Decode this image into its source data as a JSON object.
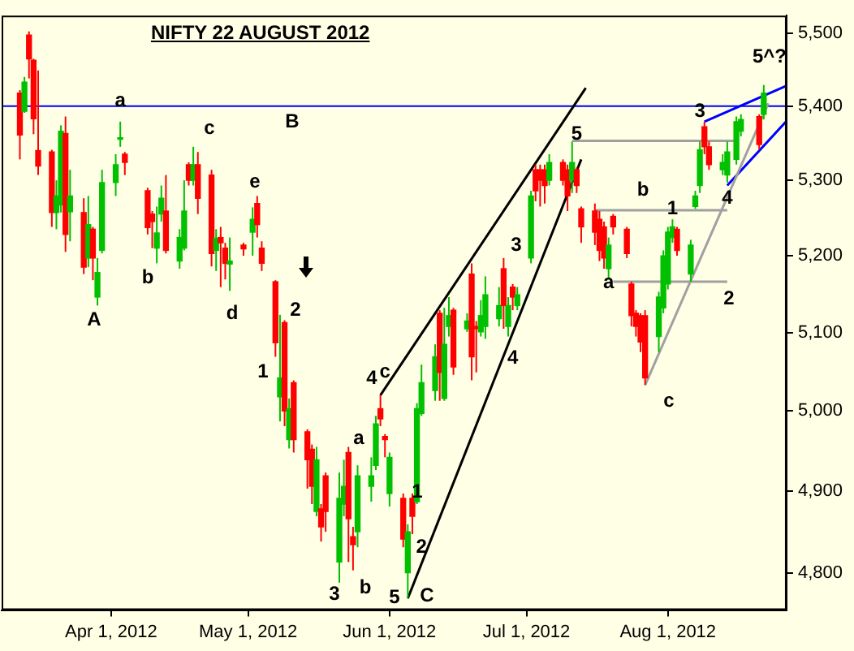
{
  "chart_data": {
    "type": "candlestick",
    "title": "NIFTY 22 AUGUST 2012",
    "log": true,
    "xlim": [
      "2012-03-08",
      "2012-08-27"
    ],
    "xticks": [
      {
        "value": "2012-04-01",
        "label": "Apr 1, 2012"
      },
      {
        "value": "2012-05-01",
        "label": "May 1, 2012"
      },
      {
        "value": "2012-06-01",
        "label": "Jun 1, 2012"
      },
      {
        "value": "2012-07-01",
        "label": "Jul 1, 2012"
      },
      {
        "value": "2012-08-01",
        "label": "Aug 1, 2012"
      }
    ],
    "ylim": [
      4755,
      5525
    ],
    "yticks": [
      {
        "value": 4800,
        "label": "4,800"
      },
      {
        "value": 4900,
        "label": "4,900"
      },
      {
        "value": 5000,
        "label": "5,000"
      },
      {
        "value": 5100,
        "label": "5,100"
      },
      {
        "value": 5200,
        "label": "5,200"
      },
      {
        "value": 5300,
        "label": "5,300"
      },
      {
        "value": 5400,
        "label": "5,400"
      },
      {
        "value": 5500,
        "label": "5,500"
      }
    ],
    "x": [
      "2012-03-12",
      "2012-03-13",
      "2012-03-14",
      "2012-03-15",
      "2012-03-16",
      "2012-03-19",
      "2012-03-20",
      "2012-03-21",
      "2012-03-22",
      "2012-03-23",
      "2012-03-26",
      "2012-03-27",
      "2012-03-28",
      "2012-03-29",
      "2012-03-30",
      "2012-04-02",
      "2012-04-03",
      "2012-04-04",
      "2012-04-09",
      "2012-04-10",
      "2012-04-11",
      "2012-04-12",
      "2012-04-13",
      "2012-04-16",
      "2012-04-17",
      "2012-04-18",
      "2012-04-19",
      "2012-04-20",
      "2012-04-23",
      "2012-04-24",
      "2012-04-25",
      "2012-04-26",
      "2012-04-27",
      "2012-04-30",
      "2012-05-02",
      "2012-05-03",
      "2012-05-04",
      "2012-05-07",
      "2012-05-08",
      "2012-05-09",
      "2012-05-10",
      "2012-05-11",
      "2012-05-14",
      "2012-05-15",
      "2012-05-16",
      "2012-05-17",
      "2012-05-18",
      "2012-05-21",
      "2012-05-22",
      "2012-05-23",
      "2012-05-24",
      "2012-05-25",
      "2012-05-28",
      "2012-05-29",
      "2012-05-30",
      "2012-05-31",
      "2012-06-01",
      "2012-06-04",
      "2012-06-05",
      "2012-06-06",
      "2012-06-07",
      "2012-06-08",
      "2012-06-11",
      "2012-06-12",
      "2012-06-13",
      "2012-06-14",
      "2012-06-15",
      "2012-06-18",
      "2012-06-19",
      "2012-06-20",
      "2012-06-21",
      "2012-06-22",
      "2012-06-25",
      "2012-06-26",
      "2012-06-27",
      "2012-06-28",
      "2012-06-29",
      "2012-07-02",
      "2012-07-03",
      "2012-07-04",
      "2012-07-05",
      "2012-07-06",
      "2012-07-09",
      "2012-07-10",
      "2012-07-11",
      "2012-07-12",
      "2012-07-13",
      "2012-07-16",
      "2012-07-17",
      "2012-07-18",
      "2012-07-19",
      "2012-07-20",
      "2012-07-23",
      "2012-07-24",
      "2012-07-25",
      "2012-07-26",
      "2012-07-27",
      "2012-07-30",
      "2012-07-31",
      "2012-08-01",
      "2012-08-02",
      "2012-08-03",
      "2012-08-06",
      "2012-08-07",
      "2012-08-08",
      "2012-08-09",
      "2012-08-10",
      "2012-08-13",
      "2012-08-14",
      "2012-08-16",
      "2012-08-17",
      "2012-08-21",
      "2012-08-22"
    ],
    "ohlc": [
      [
        5418,
        5422,
        5328,
        5361
      ],
      [
        5393,
        5440,
        5391,
        5433
      ],
      [
        5498,
        5503,
        5438,
        5465
      ],
      [
        5463,
        5465,
        5362,
        5383
      ],
      [
        5340,
        5449,
        5307,
        5319
      ],
      [
        5338,
        5341,
        5238,
        5257
      ],
      [
        5257,
        5300,
        5235,
        5279
      ],
      [
        5267,
        5374,
        5257,
        5366
      ],
      [
        5363,
        5386,
        5205,
        5228
      ],
      [
        5258,
        5314,
        5219,
        5279
      ],
      [
        5257,
        5276,
        5176,
        5185
      ],
      [
        5197,
        5279,
        5185,
        5241
      ],
      [
        5235,
        5238,
        5168,
        5197
      ],
      [
        5146,
        5197,
        5135,
        5178
      ],
      [
        5207,
        5314,
        5203,
        5297
      ],
      [
        5297,
        5335,
        5279,
        5321
      ],
      [
        5355,
        5379,
        5345,
        5357
      ],
      [
        5335,
        5338,
        5307,
        5324
      ],
      [
        5286,
        5290,
        5228,
        5237
      ],
      [
        5255,
        5259,
        5210,
        5245
      ],
      [
        5210,
        5265,
        5190,
        5230
      ],
      [
        5255,
        5293,
        5245,
        5276
      ],
      [
        5259,
        5307,
        5203,
        5207
      ],
      [
        5193,
        5235,
        5183,
        5224
      ],
      [
        5210,
        5300,
        5207,
        5259
      ],
      [
        5321,
        5324,
        5293,
        5300
      ],
      [
        5300,
        5345,
        5293,
        5321
      ],
      [
        5321,
        5338,
        5255,
        5276
      ],
      [
        5307,
        5314,
        5186,
        5203
      ],
      [
        5207,
        5235,
        5180,
        5223
      ],
      [
        5224,
        5238,
        5159,
        5217
      ],
      [
        5210,
        5217,
        5169,
        5190
      ],
      [
        5189,
        5224,
        5154,
        5193
      ],
      [
        5214,
        5217,
        5200,
        5209
      ],
      [
        5231,
        5264,
        5200,
        5248
      ],
      [
        5269,
        5279,
        5224,
        5241
      ],
      [
        5210,
        5219,
        5180,
        5190
      ],
      [
        5166,
        5168,
        5069,
        5087
      ],
      [
        5018,
        5123,
        4987,
        5042
      ],
      [
        5113,
        5116,
        4981,
        5000
      ],
      [
        4964,
        5016,
        4953,
        5003
      ],
      [
        5036,
        5039,
        4948,
        4964
      ],
      [
        4974,
        4977,
        4903,
        4939
      ],
      [
        4952,
        4958,
        4884,
        4906
      ],
      [
        4875,
        4955,
        4869,
        4939
      ],
      [
        4878,
        4884,
        4838,
        4856
      ],
      [
        4919,
        4923,
        4850,
        4875
      ],
      [
        4813,
        4923,
        4788,
        4891
      ],
      [
        4884,
        4939,
        4869,
        4906
      ],
      [
        4948,
        4955,
        4813,
        4866
      ],
      [
        4844,
        4856,
        4803,
        4834
      ],
      [
        4850,
        4932,
        4831,
        4919
      ],
      [
        4906,
        4942,
        4887,
        4919
      ],
      [
        4932,
        4994,
        4926,
        4984
      ],
      [
        5003,
        5020,
        4981,
        4990
      ],
      [
        4968,
        4971,
        4942,
        4964
      ],
      [
        4897,
        4948,
        4881,
        4942
      ],
      [
        4891,
        4897,
        4831,
        4841
      ],
      [
        4800,
        4859,
        4769,
        4850
      ],
      [
        4891,
        4897,
        4847,
        4869
      ],
      [
        4887,
        5010,
        4884,
        5003
      ],
      [
        4997,
        5059,
        4994,
        5036
      ],
      [
        5026,
        5085,
        5013,
        5069
      ],
      [
        5125,
        5129,
        5013,
        5049
      ],
      [
        5016,
        5132,
        5013,
        5085
      ],
      [
        5108,
        5146,
        5095,
        5122
      ],
      [
        5129,
        5132,
        5046,
        5056
      ],
      [
        5105,
        5125,
        5101,
        5115
      ],
      [
        5176,
        5190,
        5039,
        5069
      ],
      [
        5108,
        5115,
        5049,
        5105
      ],
      [
        5101,
        5142,
        5095,
        5122
      ],
      [
        5108,
        5173,
        5092,
        5149
      ],
      [
        5118,
        5159,
        5108,
        5135
      ],
      [
        5183,
        5197,
        5105,
        5135
      ],
      [
        5108,
        5146,
        5095,
        5135
      ],
      [
        5159,
        5163,
        5129,
        5146
      ],
      [
        5135,
        5159,
        5129,
        5149
      ],
      [
        5197,
        5286,
        5190,
        5279
      ],
      [
        5314,
        5321,
        5272,
        5286
      ],
      [
        5314,
        5321,
        5265,
        5300
      ],
      [
        5314,
        5321,
        5269,
        5293
      ],
      [
        5300,
        5335,
        5293,
        5324
      ],
      [
        5324,
        5328,
        5293,
        5300
      ],
      [
        5314,
        5321,
        5259,
        5279
      ],
      [
        5300,
        5352,
        5283,
        5324
      ],
      [
        5314,
        5317,
        5283,
        5293
      ],
      [
        5262,
        5265,
        5217,
        5238
      ],
      [
        5259,
        5269,
        5214,
        5231
      ],
      [
        5248,
        5259,
        5193,
        5207
      ],
      [
        5238,
        5245,
        5183,
        5197
      ],
      [
        5183,
        5224,
        5169,
        5214
      ],
      [
        5252,
        5255,
        5228,
        5238
      ],
      [
        5235,
        5238,
        5197,
        5203
      ],
      [
        5163,
        5166,
        5108,
        5122
      ],
      [
        5125,
        5129,
        5095,
        5108
      ],
      [
        5122,
        5125,
        5075,
        5088
      ],
      [
        5122,
        5129,
        5033,
        5042
      ],
      [
        5095,
        5153,
        5075,
        5146
      ],
      [
        5132,
        5207,
        5125,
        5200
      ],
      [
        5163,
        5238,
        5156,
        5231
      ],
      [
        5224,
        5248,
        5217,
        5238
      ],
      [
        5235,
        5238,
        5200,
        5207
      ],
      [
        5176,
        5221,
        5166,
        5214
      ],
      [
        5265,
        5286,
        5262,
        5279
      ],
      [
        5293,
        5352,
        5283,
        5341
      ],
      [
        5372,
        5379,
        5335,
        5345
      ],
      [
        5345,
        5352,
        5314,
        5321
      ],
      [
        5314,
        5335,
        5307,
        5324
      ],
      [
        5307,
        5352,
        5297,
        5338
      ],
      [
        5328,
        5386,
        5321,
        5379
      ],
      [
        5366,
        5389,
        5359,
        5382
      ],
      [
        5386,
        5389,
        5341,
        5348
      ],
      [
        5389,
        5429,
        5382,
        5418
      ]
    ],
    "colors": [
      "#ff0000",
      "#00c000",
      "#ff0000",
      "#ff0000",
      "#ff0000",
      "#ff0000",
      "#00c000",
      "#00c000",
      "#ff0000",
      "#00c000",
      "#ff0000",
      "#00c000",
      "#ff0000",
      "#00c000",
      "#00c000",
      "#00c000",
      "#00c000",
      "#ff0000",
      "#ff0000",
      "#ff0000",
      "#00c000",
      "#00c000",
      "#ff0000",
      "#00c000",
      "#00c000",
      "#ff0000",
      "#00c000",
      "#ff0000",
      "#ff0000",
      "#00c000",
      "#ff0000",
      "#ff0000",
      "#00c000",
      "#ff0000",
      "#00c000",
      "#ff0000",
      "#ff0000",
      "#ff0000",
      "#00c000",
      "#ff0000",
      "#00c000",
      "#ff0000",
      "#ff0000",
      "#ff0000",
      "#00c000",
      "#ff0000",
      "#ff0000",
      "#00c000",
      "#00c000",
      "#ff0000",
      "#ff0000",
      "#00c000",
      "#00c000",
      "#00c000",
      "#ff0000",
      "#ff0000",
      "#00c000",
      "#ff0000",
      "#00c000",
      "#ff0000",
      "#00c000",
      "#00c000",
      "#00c000",
      "#ff0000",
      "#00c000",
      "#00c000",
      "#ff0000",
      "#00c000",
      "#ff0000",
      "#ff0000",
      "#00c000",
      "#00c000",
      "#00c000",
      "#ff0000",
      "#00c000",
      "#ff0000",
      "#00c000",
      "#00c000",
      "#ff0000",
      "#ff0000",
      "#ff0000",
      "#00c000",
      "#ff0000",
      "#ff0000",
      "#00c000",
      "#ff0000",
      "#ff0000",
      "#ff0000",
      "#ff0000",
      "#ff0000",
      "#00c000",
      "#ff0000",
      "#ff0000",
      "#ff0000",
      "#ff0000",
      "#ff0000",
      "#ff0000",
      "#00c000",
      "#00c000",
      "#00c000",
      "#00c000",
      "#ff0000",
      "#00c000",
      "#00c000",
      "#00c000",
      "#ff0000",
      "#ff0000",
      "#00c000",
      "#00c000",
      "#00c000",
      "#00c000",
      "#ff0000",
      "#00c000"
    ],
    "series": [
      {
        "type": "line",
        "color": "#000000",
        "x": [
          "2012-05-30",
          "2012-07-14"
        ],
        "values": [
          5020,
          5425
        ]
      },
      {
        "type": "line",
        "color": "#000000",
        "x": [
          "2012-06-05",
          "2012-07-13"
        ],
        "values": [
          4769,
          5328
        ]
      },
      {
        "type": "line",
        "color": "#a0a0a0",
        "x": [
          "2012-07-11",
          "2012-08-16"
        ],
        "values": [
          5353,
          5353
        ]
      },
      {
        "type": "line",
        "color": "#a0a0a0",
        "x": [
          "2012-07-16",
          "2012-08-14"
        ],
        "values": [
          5260,
          5260
        ]
      },
      {
        "type": "line",
        "color": "#a0a0a0",
        "x": [
          "2012-07-20",
          "2012-08-14"
        ],
        "values": [
          5166,
          5166
        ]
      },
      {
        "type": "line",
        "color": "#a0a0a0",
        "x": [
          "2012-07-27",
          "2012-08-23"
        ],
        "values": [
          5033,
          5404
        ]
      },
      {
        "type": "line",
        "color": "#0000ff",
        "x": [
          "2012-08-09",
          "2012-08-27"
        ],
        "values": [
          5379,
          5428
        ]
      },
      {
        "type": "line",
        "color": "#0000ff",
        "x": [
          "2012-08-14",
          "2012-08-27"
        ],
        "values": [
          5293,
          5380
        ]
      }
    ],
    "ref_lines": [
      {
        "axis": "y",
        "value": 5400,
        "color": "#0000ff"
      }
    ],
    "annotations": [
      {
        "text": "a",
        "x": "2012-04-03",
        "y": 5407
      },
      "c",
      "B",
      "e",
      "b",
      "A",
      "d",
      "1",
      "2",
      "4",
      {
        "text": "c",
        "x": "2012-05-31",
        "y": 5049
      },
      "a",
      "b",
      "3",
      "1",
      {
        "text": "2",
        "x": "2012-06-08",
        "y": 4831
      },
      "5",
      "C",
      "3",
      {
        "text": "4",
        "x": "2012-06-28",
        "y": 5067
      },
      {
        "text": "5",
        "x": "2012-07-12",
        "y": 5362
      },
      "b",
      {
        "text": "a",
        "x": "2012-07-19",
        "y": 5165
      },
      "c",
      {
        "text": "1",
        "x": "2012-08-02",
        "y": 5262
      },
      "2",
      {
        "text": "3",
        "x": "2012-08-08",
        "y": 5393
      },
      {
        "text": "4",
        "x": "2012-08-14",
        "y": 5276
      },
      "5^?"
    ]
  }
}
